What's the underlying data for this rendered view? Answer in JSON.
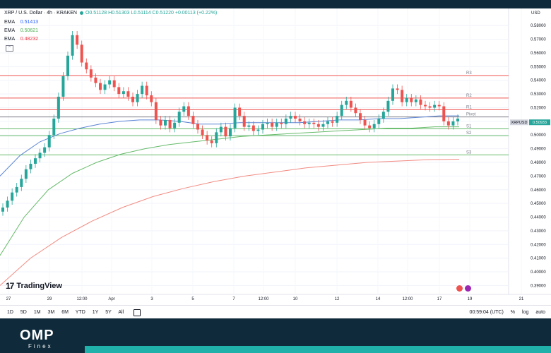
{
  "header": {
    "symbol": "XRP / U.S. Dollar · 4h · KRAKEN",
    "ohlc": "O0.51128 H0.51303 L0.51114 C0.51220 +0.00113 (+0.22%)"
  },
  "indicators": [
    {
      "label": "EMA",
      "value": "0.51413",
      "color": "#2962ff"
    },
    {
      "label": "EMA",
      "value": "0.50621",
      "color": "#4caf50"
    },
    {
      "label": "EMA",
      "value": "0.48232",
      "color": "#f23645"
    }
  ],
  "currency": "USD",
  "symbol_tag": "XRPUSD",
  "price_tag": "0.50933",
  "brand": {
    "name": "TradingView",
    "footer_logo": "OMP",
    "footer_sub": "Finex"
  },
  "timeframes": [
    "1D",
    "5D",
    "1M",
    "3M",
    "6M",
    "YTD",
    "1Y",
    "5Y",
    "All"
  ],
  "clock": "00:59:04 (UTC)",
  "bottom_right": {
    "percent": "%",
    "log": "log",
    "auto": "auto"
  },
  "colors": {
    "up": "#26a69a",
    "down": "#ef5350",
    "resistance": "#ef5350",
    "support": "#66bb6a",
    "pivot": "#787b86"
  },
  "chart_data": {
    "type": "candlestick",
    "ylim": [
      0.3835,
      0.5925
    ],
    "y_ticks": [
      "0.58000",
      "0.57000",
      "0.56000",
      "0.55000",
      "0.54000",
      "0.53000",
      "0.52000",
      "0.51000",
      "0.50000",
      "0.49000",
      "0.48000",
      "0.47000",
      "0.46000",
      "0.45000",
      "0.44000",
      "0.43000",
      "0.42000",
      "0.41000",
      "0.40000",
      "0.39000"
    ],
    "x_ticks": [
      "27",
      "29",
      "12:00",
      "Apr",
      "3",
      "5",
      "7",
      "12:00",
      "10",
      "12",
      "14",
      "12:00",
      "17",
      "19",
      "21"
    ],
    "levels": [
      {
        "label": "R3",
        "value": 0.5435,
        "kind": "resistance"
      },
      {
        "label": "R2",
        "value": 0.527,
        "kind": "resistance"
      },
      {
        "label": "R1",
        "value": 0.5185,
        "kind": "resistance"
      },
      {
        "label": "Pivot",
        "value": 0.5132,
        "kind": "pivot"
      },
      {
        "label": "S1",
        "value": 0.5045,
        "kind": "support"
      },
      {
        "label": "S2",
        "value": 0.4995,
        "kind": "support"
      },
      {
        "label": "S3",
        "value": 0.4855,
        "kind": "support"
      }
    ],
    "candles_summary": "closes per 4h bar",
    "closes": [
      0.447,
      0.452,
      0.458,
      0.462,
      0.468,
      0.475,
      0.479,
      0.483,
      0.487,
      0.491,
      0.5,
      0.512,
      0.528,
      0.543,
      0.558,
      0.573,
      0.566,
      0.553,
      0.548,
      0.542,
      0.538,
      0.533,
      0.537,
      0.54,
      0.535,
      0.53,
      0.532,
      0.528,
      0.524,
      0.53,
      0.536,
      0.529,
      0.524,
      0.511,
      0.507,
      0.511,
      0.505,
      0.509,
      0.517,
      0.521,
      0.514,
      0.508,
      0.504,
      0.5,
      0.496,
      0.494,
      0.502,
      0.506,
      0.499,
      0.505,
      0.52,
      0.514,
      0.506,
      0.507,
      0.503,
      0.504,
      0.508,
      0.509,
      0.506,
      0.509,
      0.508,
      0.512,
      0.514,
      0.512,
      0.51,
      0.508,
      0.509,
      0.508,
      0.506,
      0.508,
      0.51,
      0.509,
      0.514,
      0.522,
      0.525,
      0.52,
      0.516,
      0.511,
      0.507,
      0.505,
      0.508,
      0.512,
      0.517,
      0.525,
      0.534,
      0.533,
      0.524,
      0.527,
      0.524,
      0.526,
      0.522,
      0.521,
      0.52,
      0.522,
      0.521,
      0.51,
      0.507,
      0.51,
      0.512
    ],
    "ema_blue": [
      0.47,
      0.485,
      0.495,
      0.501,
      0.505,
      0.508,
      0.51,
      0.511,
      0.511,
      0.51,
      0.508,
      0.508,
      0.509,
      0.509,
      0.509,
      0.509,
      0.51,
      0.511,
      0.511,
      0.512,
      0.512,
      0.513,
      0.514,
      0.514
    ],
    "ema_green": [
      0.412,
      0.44,
      0.46,
      0.472,
      0.48,
      0.486,
      0.49,
      0.493,
      0.495,
      0.497,
      0.499,
      0.5,
      0.501,
      0.502,
      0.503,
      0.504,
      0.505,
      0.505,
      0.506,
      0.506
    ],
    "ema_red": [
      0.39,
      0.41,
      0.425,
      0.437,
      0.447,
      0.455,
      0.461,
      0.466,
      0.47,
      0.473,
      0.476,
      0.478,
      0.48,
      0.481,
      0.482,
      0.4823
    ]
  }
}
